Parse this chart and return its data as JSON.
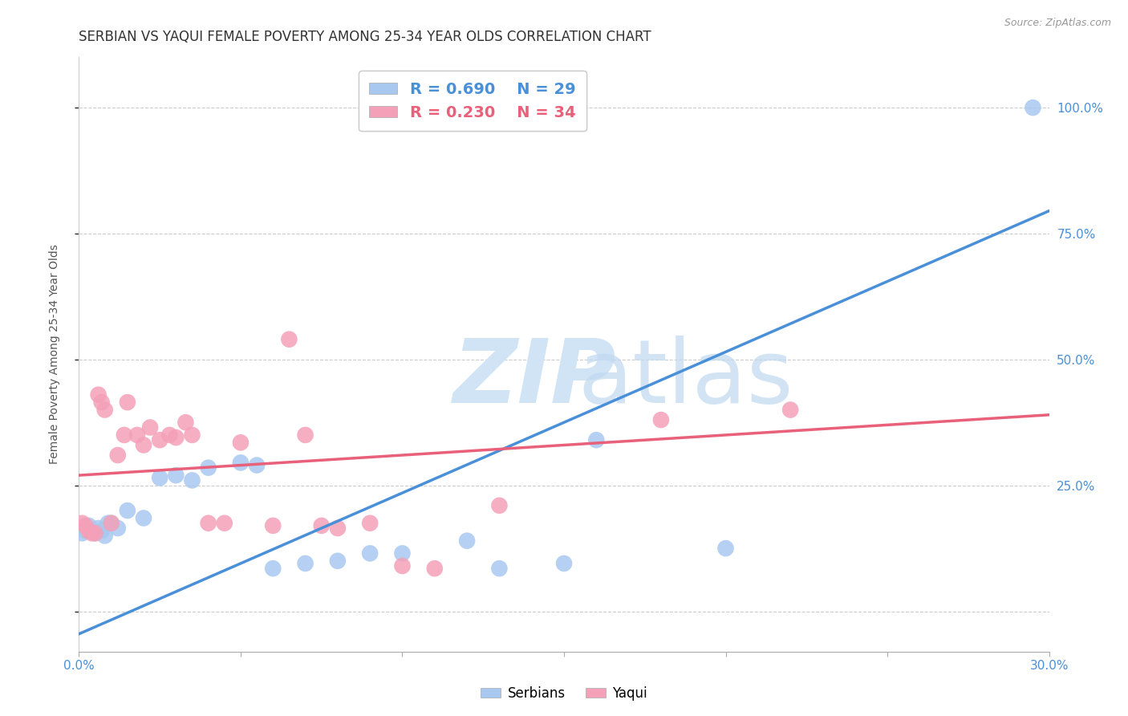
{
  "title": "SERBIAN VS YAQUI FEMALE POVERTY AMONG 25-34 YEAR OLDS CORRELATION CHART",
  "source": "Source: ZipAtlas.com",
  "ylabel": "Female Poverty Among 25-34 Year Olds",
  "xlim": [
    0.0,
    0.3
  ],
  "ylim": [
    -0.08,
    1.1
  ],
  "xticks": [
    0.0,
    0.05,
    0.1,
    0.15,
    0.2,
    0.25,
    0.3
  ],
  "xticklabels": [
    "0.0%",
    "",
    "",
    "",
    "",
    "",
    "30.0%"
  ],
  "ytick_positions": [
    0.0,
    0.25,
    0.5,
    0.75,
    1.0
  ],
  "ytick_labels": [
    "",
    "25.0%",
    "50.0%",
    "75.0%",
    "100.0%"
  ],
  "serbian_R": 0.69,
  "serbian_N": 29,
  "yaqui_R": 0.23,
  "yaqui_N": 34,
  "serbian_color": "#A8C8F0",
  "yaqui_color": "#F4A0B8",
  "serbian_line_color": "#4A90D9",
  "yaqui_line_color": "#E8607A",
  "legend_blue_text_color": "#4A90D9",
  "legend_pink_text_color": "#E8607A",
  "serbian_x": [
    0.001,
    0.002,
    0.003,
    0.005,
    0.006,
    0.007,
    0.008,
    0.009,
    0.01,
    0.012,
    0.015,
    0.02,
    0.025,
    0.03,
    0.035,
    0.04,
    0.05,
    0.055,
    0.06,
    0.07,
    0.08,
    0.09,
    0.1,
    0.12,
    0.13,
    0.15,
    0.16,
    0.2,
    0.295
  ],
  "serbian_y": [
    0.155,
    0.16,
    0.17,
    0.155,
    0.165,
    0.16,
    0.15,
    0.175,
    0.175,
    0.165,
    0.2,
    0.185,
    0.265,
    0.27,
    0.26,
    0.285,
    0.295,
    0.29,
    0.085,
    0.095,
    0.1,
    0.115,
    0.115,
    0.14,
    0.085,
    0.095,
    0.34,
    0.125,
    1.0
  ],
  "yaqui_x": [
    0.001,
    0.002,
    0.003,
    0.004,
    0.005,
    0.006,
    0.007,
    0.008,
    0.01,
    0.012,
    0.014,
    0.015,
    0.018,
    0.02,
    0.022,
    0.025,
    0.028,
    0.03,
    0.033,
    0.035,
    0.04,
    0.045,
    0.05,
    0.06,
    0.065,
    0.07,
    0.075,
    0.08,
    0.09,
    0.1,
    0.11,
    0.13,
    0.18,
    0.22
  ],
  "yaqui_y": [
    0.175,
    0.17,
    0.16,
    0.155,
    0.155,
    0.43,
    0.415,
    0.4,
    0.175,
    0.31,
    0.35,
    0.415,
    0.35,
    0.33,
    0.365,
    0.34,
    0.35,
    0.345,
    0.375,
    0.35,
    0.175,
    0.175,
    0.335,
    0.17,
    0.54,
    0.35,
    0.17,
    0.165,
    0.175,
    0.09,
    0.085,
    0.21,
    0.38,
    0.4
  ],
  "serbian_line_x0": 0.0,
  "serbian_line_y0": -0.045,
  "serbian_line_x1": 0.3,
  "serbian_line_y1": 0.795,
  "yaqui_line_x0": 0.0,
  "yaqui_line_y0": 0.27,
  "yaqui_line_x1": 0.3,
  "yaqui_line_y1": 0.39,
  "grid_color": "#CCCCCC",
  "title_fontsize": 12,
  "axis_fontsize": 10,
  "tick_fontsize": 11,
  "right_tick_color": "#4A90D9",
  "background_color": "#FFFFFF"
}
